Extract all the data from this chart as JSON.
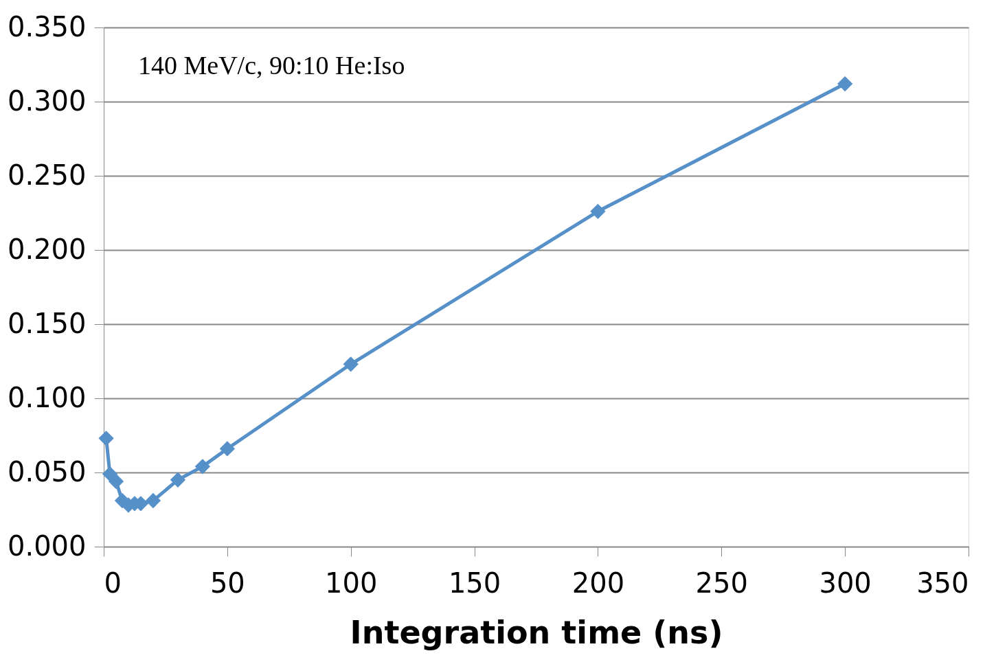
{
  "chart_data": {
    "type": "line",
    "xlabel": "Integration time (ns)",
    "annotations": [
      "140 MeV/c, 90:10 He:Iso"
    ],
    "x": [
      1,
      2.5,
      5,
      7.5,
      10,
      12.5,
      15,
      20,
      30,
      40,
      50,
      100,
      200,
      300
    ],
    "series": [
      {
        "color": "#5690c9",
        "values": [
          0.073,
          0.049,
          0.044,
          0.031,
          0.028,
          0.029,
          0.029,
          0.031,
          0.045,
          0.054,
          0.066,
          0.123,
          0.226,
          0.312
        ]
      }
    ],
    "xlim": [
      0,
      350
    ],
    "xticks": [
      0,
      50,
      100,
      150,
      200,
      250,
      300,
      350
    ],
    "ylim": [
      0,
      0.35
    ],
    "yticks": [
      {
        "value": 0,
        "label": "0.000"
      },
      {
        "value": 0.05,
        "label": "0.050"
      },
      {
        "value": 0.1,
        "label": "0.100"
      },
      {
        "value": 0.15,
        "label": "0.150"
      },
      {
        "value": 0.2,
        "label": "0.200"
      },
      {
        "value": 0.25,
        "label": "0.250"
      },
      {
        "value": 0.3,
        "label": "0.300"
      },
      {
        "value": 0.35,
        "label": "0.350"
      }
    ],
    "grid": "y",
    "marker": "diamond",
    "line_style": "solid"
  }
}
